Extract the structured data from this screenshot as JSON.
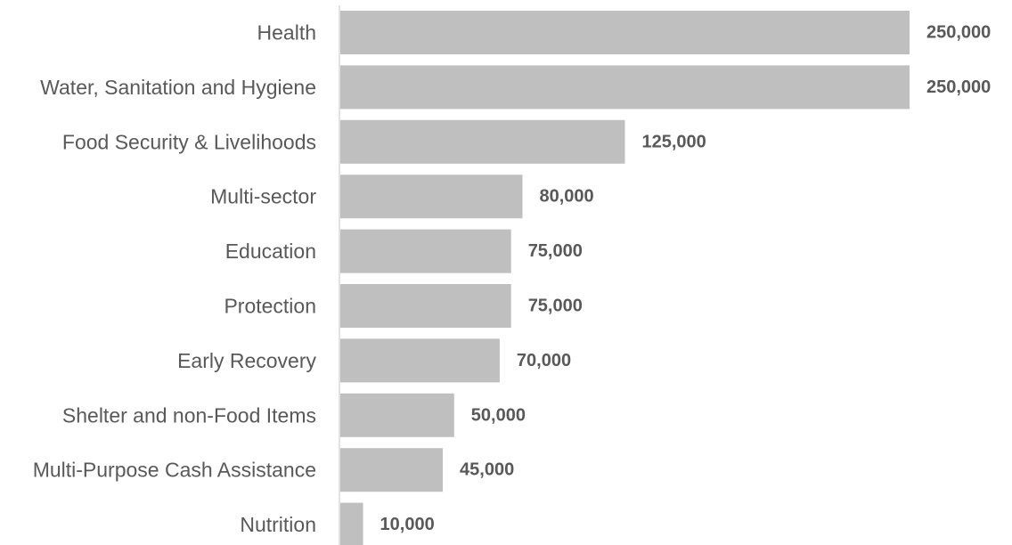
{
  "chart_data": {
    "type": "bar",
    "orientation": "horizontal",
    "title": "",
    "xlabel": "",
    "ylabel": "",
    "categories": [
      "Health",
      "Water, Sanitation and Hygiene",
      "Food Security & Livelihoods",
      "Multi-sector",
      "Education",
      "Protection",
      "Early Recovery",
      "Shelter and non-Food Items",
      "Multi-Purpose Cash Assistance",
      "Nutrition"
    ],
    "values": [
      250000,
      250000,
      125000,
      80000,
      75000,
      75000,
      70000,
      50000,
      45000,
      10000
    ],
    "value_labels": [
      "250,000",
      "250,000",
      "125,000",
      "80,000",
      "75,000",
      "75,000",
      "70,000",
      "50,000",
      "45,000",
      "10,000"
    ],
    "xlim": [
      0,
      250000
    ],
    "grid": false,
    "legend": "none",
    "bar_color": "#bfbfbf",
    "text_color": "#595959",
    "axis_color": "#d9d9d9"
  }
}
